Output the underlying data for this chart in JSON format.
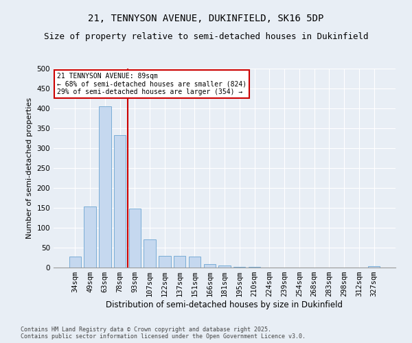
{
  "title1": "21, TENNYSON AVENUE, DUKINFIELD, SK16 5DP",
  "title2": "Size of property relative to semi-detached houses in Dukinfield",
  "xlabel": "Distribution of semi-detached houses by size in Dukinfield",
  "ylabel": "Number of semi-detached properties",
  "categories": [
    "34sqm",
    "49sqm",
    "63sqm",
    "78sqm",
    "93sqm",
    "107sqm",
    "122sqm",
    "137sqm",
    "151sqm",
    "166sqm",
    "181sqm",
    "195sqm",
    "210sqm",
    "224sqm",
    "239sqm",
    "254sqm",
    "268sqm",
    "283sqm",
    "298sqm",
    "312sqm",
    "327sqm"
  ],
  "values": [
    27,
    153,
    405,
    332,
    148,
    70,
    30,
    30,
    28,
    8,
    6,
    1,
    1,
    0,
    0,
    0,
    0,
    0,
    0,
    0,
    3
  ],
  "bar_color": "#c5d8ef",
  "bar_edge_color": "#7aadd6",
  "vline_color": "#cc0000",
  "annotation_title": "21 TENNYSON AVENUE: 89sqm",
  "annotation_line1": "← 68% of semi-detached houses are smaller (824)",
  "annotation_line2": "29% of semi-detached houses are larger (354) →",
  "annotation_box_color": "#cc0000",
  "ylim": [
    0,
    500
  ],
  "yticks": [
    0,
    50,
    100,
    150,
    200,
    250,
    300,
    350,
    400,
    450,
    500
  ],
  "footnote1": "Contains HM Land Registry data © Crown copyright and database right 2025.",
  "footnote2": "Contains public sector information licensed under the Open Government Licence v3.0.",
  "bg_color": "#e8eef5",
  "plot_bg_color": "#e8eef5",
  "title1_fontsize": 10,
  "title2_fontsize": 9,
  "xlabel_fontsize": 8.5,
  "ylabel_fontsize": 8,
  "tick_fontsize": 7.5,
  "annot_fontsize": 7,
  "footnote_fontsize": 6
}
